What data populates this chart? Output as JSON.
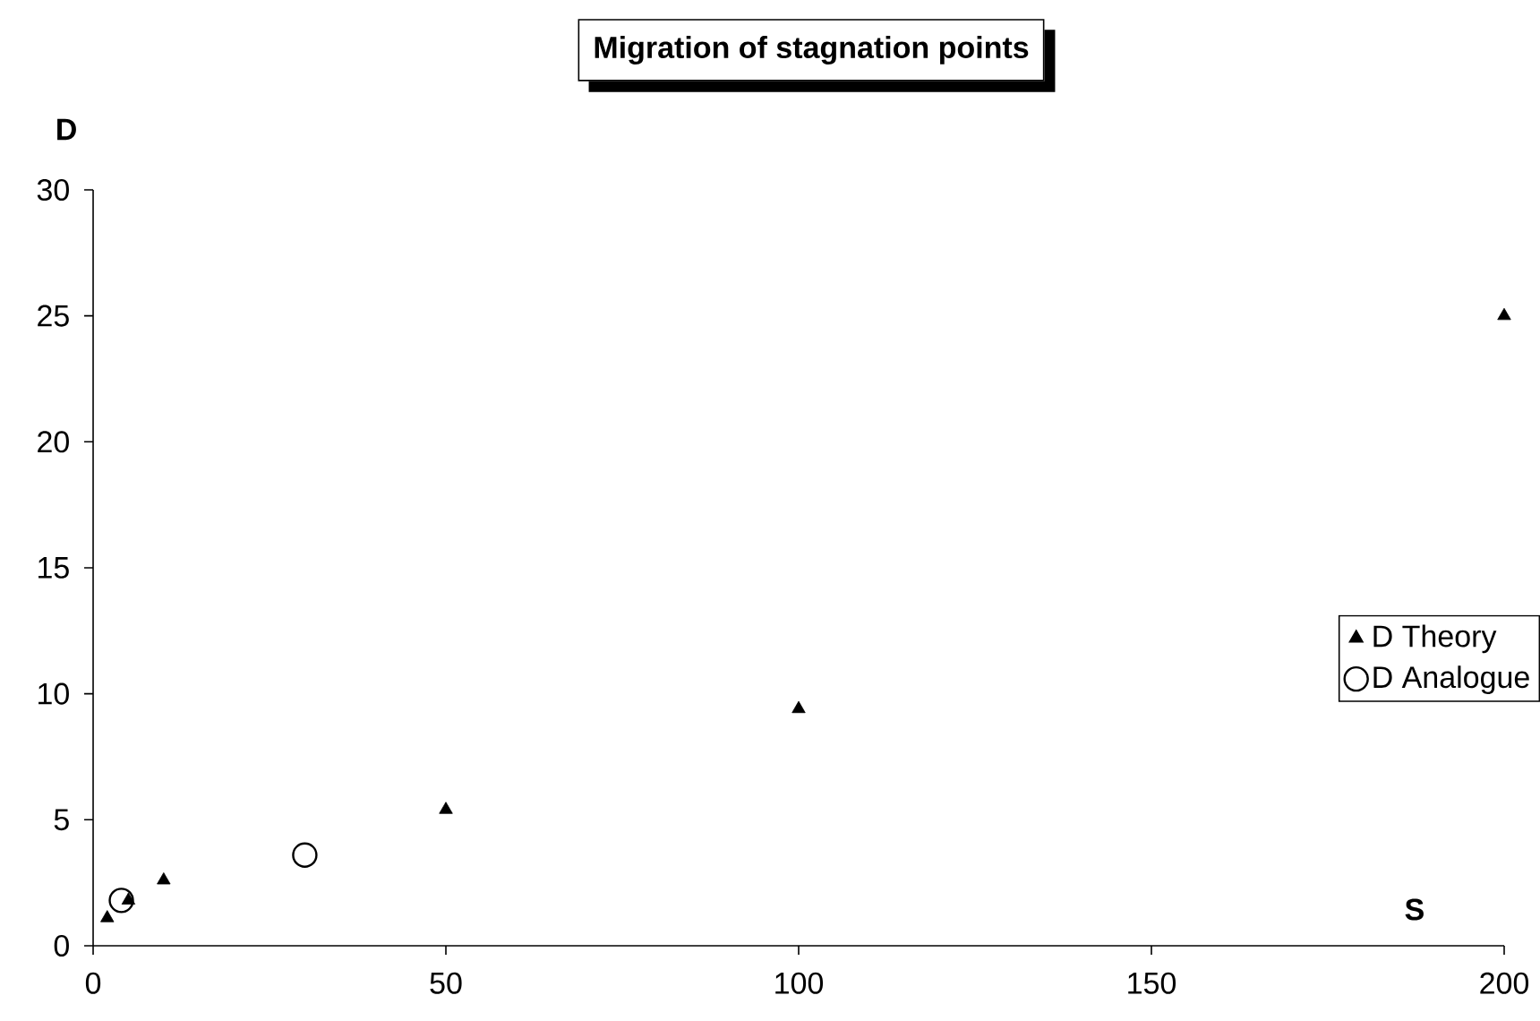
{
  "chart_data": {
    "type": "scatter",
    "title": "Migration of stagnation points",
    "xlabel": "S",
    "ylabel": "D",
    "series": [
      {
        "name": "D Theory",
        "color": "#000000",
        "marker": "triangle",
        "x": [
          2,
          5,
          10,
          50,
          100,
          200
        ],
        "values": [
          1.1,
          1.8,
          2.6,
          5.4,
          9.4,
          25
        ]
      },
      {
        "name": "D Analogue",
        "color": "#000000",
        "marker": "circle",
        "x": [
          4,
          30
        ],
        "values": [
          1.8,
          3.6
        ]
      }
    ],
    "xlim": [
      0,
      200
    ],
    "ylim": [
      0,
      30
    ],
    "xticks": [
      0,
      50,
      100,
      150,
      200
    ],
    "yticks": [
      0,
      5,
      10,
      15,
      20,
      25,
      30
    ],
    "grid": false,
    "legend": "right"
  }
}
